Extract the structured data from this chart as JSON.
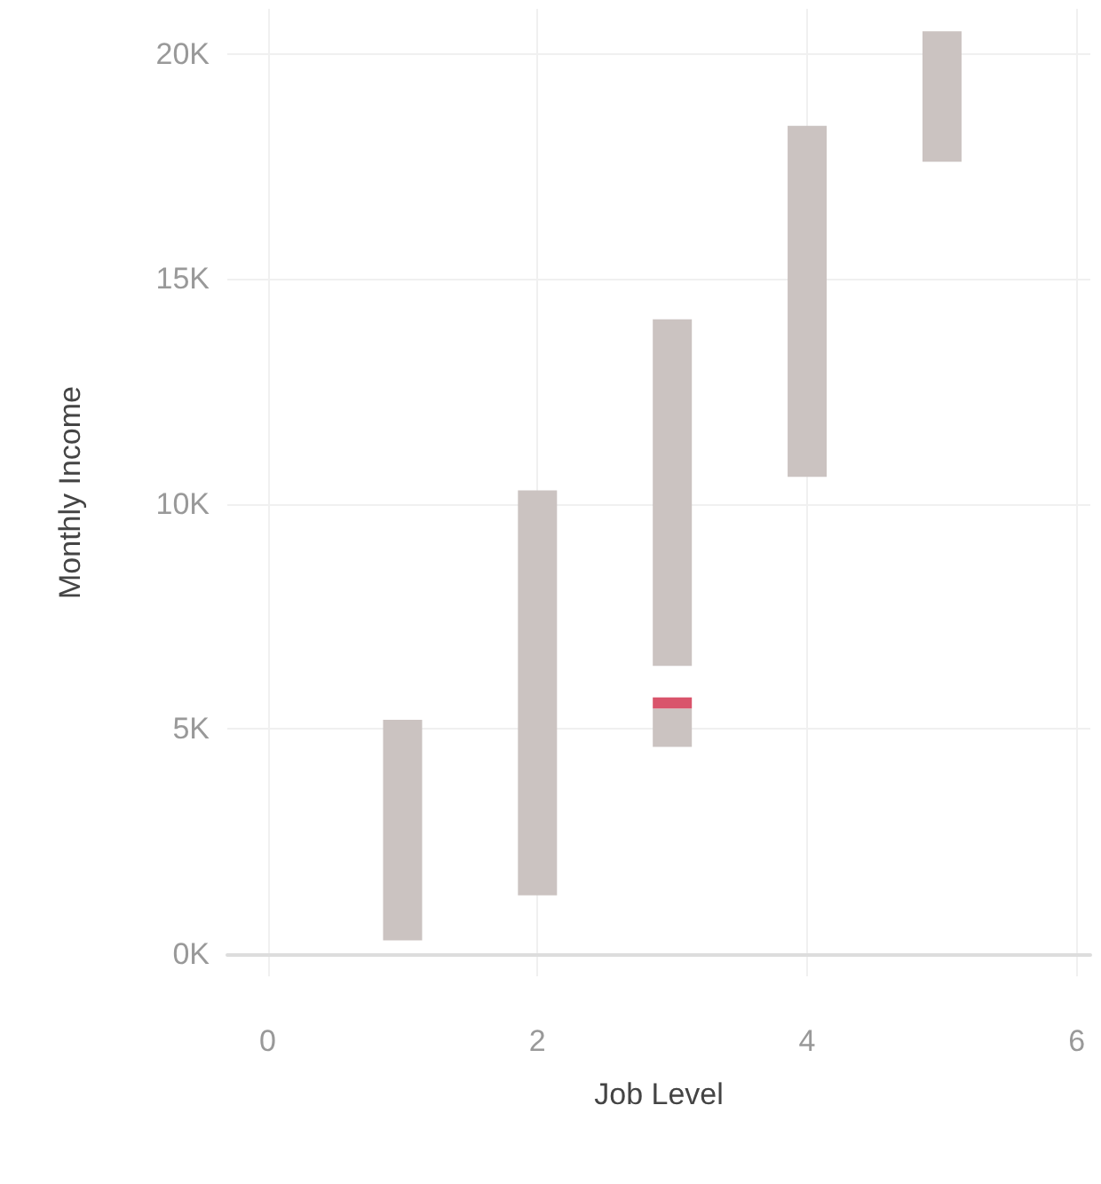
{
  "chart_data": {
    "type": "bar",
    "xlabel": "Job Level",
    "ylabel": "Monthly Income",
    "xlim": [
      -0.3,
      6.1
    ],
    "xticks": [
      0,
      2,
      4,
      6
    ],
    "ylim": [
      -500,
      21000
    ],
    "yticks": [
      {
        "value": 0,
        "label": "0K"
      },
      {
        "value": 5000,
        "label": "5K"
      },
      {
        "value": 10000,
        "label": "10K"
      },
      {
        "value": 15000,
        "label": "15K"
      },
      {
        "value": 20000,
        "label": "20K"
      }
    ],
    "grid": true,
    "series": [
      {
        "color": "#cbc3c1",
        "x": [
          1,
          2,
          3,
          4,
          5
        ],
        "base": [
          300,
          1300,
          6400,
          10600,
          17600
        ],
        "values": [
          4900,
          9000,
          7700,
          7800,
          2900
        ]
      },
      {
        "color": "#cbc3c1",
        "x": [
          3
        ],
        "base": [
          4600
        ],
        "values": [
          850
        ]
      },
      {
        "color": "#d9546b",
        "x": [
          3
        ],
        "base": [
          5450
        ],
        "values": [
          250
        ]
      }
    ]
  }
}
